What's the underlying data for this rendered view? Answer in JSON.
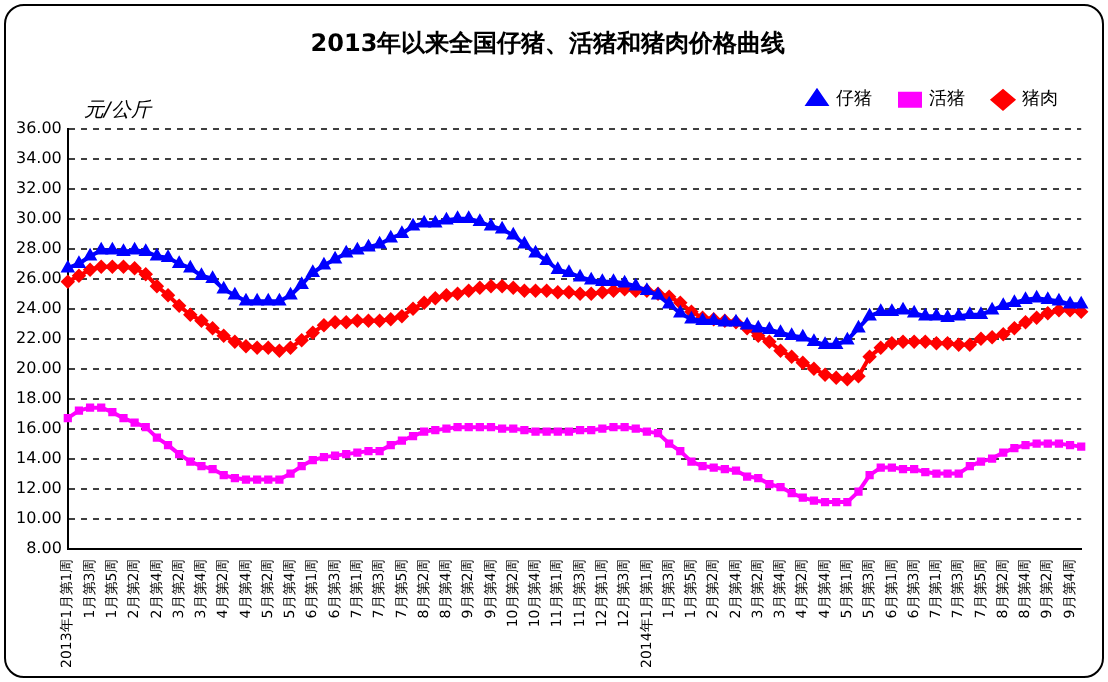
{
  "chart_data": {
    "type": "line",
    "title": "2013年以来全国仔猪、活猪和猪肉价格曲线",
    "ylabel": "元/公斤",
    "categories": [
      "2013年1月第1周",
      null,
      "1月第3周",
      null,
      "1月第5周",
      null,
      "2月第2周",
      null,
      "2月第4周",
      null,
      "3月第2周",
      null,
      "3月第4周",
      null,
      "4月第2周",
      null,
      "4月第4周",
      null,
      "5月第2周",
      null,
      "5月第4周",
      null,
      "6月第1周",
      null,
      "6月第3周",
      null,
      "7月第1周",
      null,
      "7月第3周",
      null,
      "7月第5周",
      null,
      "8月第2周",
      null,
      "8月第4周",
      null,
      "9月第2周",
      null,
      "9月第4周",
      null,
      "10月第2周",
      null,
      "10月第4周",
      null,
      "11月第1周",
      null,
      "11月第3周",
      null,
      "12月第1周",
      null,
      "12月第3周",
      null,
      "2014年1月第1周",
      null,
      "1月第3周",
      null,
      "1月第5周",
      null,
      "2月第2周",
      null,
      "2月第4周",
      null,
      "3月第2周",
      null,
      "3月第4周",
      null,
      "4月第2周",
      null,
      "4月第4周",
      null,
      "5月第1周",
      null,
      "5月第3周",
      null,
      "6月第1周",
      null,
      "6月第3周",
      null,
      "7月第1周",
      null,
      "7月第3周",
      null,
      "7月第5周",
      null,
      "8月第2周",
      null,
      "8月第4周",
      null,
      "9月第2周",
      null,
      "9月第4周",
      null
    ],
    "series": [
      {
        "name": "仔猪",
        "color": "#0000ff",
        "marker": "triangle",
        "values": [
          26.7,
          27.0,
          27.5,
          27.9,
          27.9,
          27.8,
          27.9,
          27.8,
          27.5,
          27.4,
          27.0,
          26.7,
          26.2,
          26.0,
          25.3,
          24.9,
          24.5,
          24.5,
          24.5,
          24.5,
          24.9,
          25.6,
          26.4,
          26.9,
          27.3,
          27.7,
          27.9,
          28.1,
          28.3,
          28.7,
          29.0,
          29.5,
          29.7,
          29.7,
          29.9,
          30.0,
          30.0,
          29.8,
          29.5,
          29.3,
          28.9,
          28.3,
          27.7,
          27.2,
          26.6,
          26.4,
          26.1,
          25.9,
          25.8,
          25.8,
          25.7,
          25.5,
          25.2,
          24.9,
          24.3,
          23.7,
          23.3,
          23.2,
          23.2,
          23.1,
          23.1,
          22.9,
          22.7,
          22.6,
          22.4,
          22.2,
          22.1,
          21.8,
          21.6,
          21.6,
          21.9,
          22.7,
          23.5,
          23.8,
          23.8,
          23.9,
          23.7,
          23.5,
          23.5,
          23.4,
          23.5,
          23.6,
          23.6,
          23.9,
          24.2,
          24.4,
          24.6,
          24.7,
          24.6,
          24.5,
          24.3,
          24.3
        ]
      },
      {
        "name": "活猪",
        "color": "#ff00ff",
        "marker": "square",
        "values": [
          16.7,
          17.2,
          17.4,
          17.4,
          17.1,
          16.7,
          16.4,
          16.1,
          15.4,
          14.9,
          14.3,
          13.8,
          13.5,
          13.3,
          12.9,
          12.7,
          12.6,
          12.6,
          12.6,
          12.6,
          13.0,
          13.5,
          13.9,
          14.1,
          14.2,
          14.3,
          14.4,
          14.5,
          14.5,
          14.9,
          15.2,
          15.5,
          15.8,
          15.9,
          16.0,
          16.1,
          16.1,
          16.1,
          16.1,
          16.0,
          16.0,
          15.9,
          15.8,
          15.8,
          15.8,
          15.8,
          15.9,
          15.9,
          16.0,
          16.1,
          16.1,
          16.0,
          15.8,
          15.7,
          15.0,
          14.5,
          13.8,
          13.5,
          13.4,
          13.3,
          13.2,
          12.8,
          12.7,
          12.3,
          12.1,
          11.7,
          11.4,
          11.2,
          11.1,
          11.1,
          11.1,
          11.8,
          12.9,
          13.4,
          13.4,
          13.3,
          13.3,
          13.1,
          13.0,
          13.0,
          13.0,
          13.5,
          13.8,
          14.0,
          14.4,
          14.7,
          14.9,
          15.0,
          15.0,
          15.0,
          14.9,
          14.8
        ]
      },
      {
        "name": "猪肉",
        "color": "#ff0000",
        "marker": "diamond",
        "values": [
          25.8,
          26.2,
          26.6,
          26.8,
          26.8,
          26.8,
          26.7,
          26.3,
          25.5,
          24.9,
          24.2,
          23.6,
          23.2,
          22.7,
          22.2,
          21.8,
          21.5,
          21.4,
          21.4,
          21.2,
          21.4,
          21.9,
          22.4,
          22.9,
          23.1,
          23.1,
          23.2,
          23.2,
          23.2,
          23.3,
          23.5,
          24.0,
          24.4,
          24.7,
          24.9,
          25.0,
          25.2,
          25.4,
          25.5,
          25.5,
          25.4,
          25.2,
          25.2,
          25.2,
          25.1,
          25.1,
          25.0,
          25.0,
          25.1,
          25.2,
          25.3,
          25.2,
          25.2,
          25.0,
          24.8,
          24.4,
          23.8,
          23.4,
          23.3,
          23.2,
          23.1,
          22.7,
          22.2,
          21.8,
          21.2,
          20.8,
          20.4,
          20.0,
          19.6,
          19.4,
          19.3,
          19.5,
          20.8,
          21.4,
          21.7,
          21.8,
          21.8,
          21.8,
          21.7,
          21.7,
          21.6,
          21.6,
          22.0,
          22.1,
          22.3,
          22.7,
          23.1,
          23.4,
          23.7,
          23.9,
          23.9,
          23.8
        ]
      }
    ],
    "ylim": [
      8,
      36
    ],
    "yticks": [
      {
        "value": 8,
        "label": "8.00"
      },
      {
        "value": 10,
        "label": "10.00"
      },
      {
        "value": 12,
        "label": "12.00"
      },
      {
        "value": 14,
        "label": "14.00"
      },
      {
        "value": 16,
        "label": "16.00"
      },
      {
        "value": 18,
        "label": "18.00"
      },
      {
        "value": 20,
        "label": "20.00"
      },
      {
        "value": 22,
        "label": "22.00"
      },
      {
        "value": 24,
        "label": "24.00"
      },
      {
        "value": 26,
        "label": "26.00"
      },
      {
        "value": 28,
        "label": "28.00"
      },
      {
        "value": 30,
        "label": "30.00"
      },
      {
        "value": 32,
        "label": "32.00"
      },
      {
        "value": 34,
        "label": "34.00"
      },
      {
        "value": 36,
        "label": "36.00"
      }
    ],
    "grid": "y",
    "legend": "top right"
  }
}
